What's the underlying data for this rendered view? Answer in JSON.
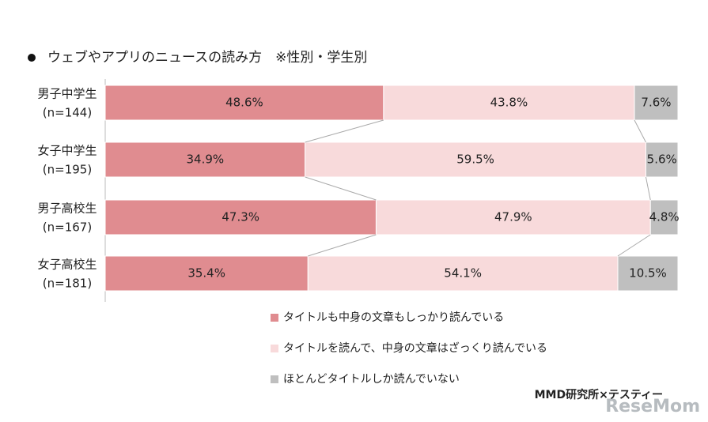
{
  "chart_data": {
    "type": "stacked-bar-100",
    "title": "ウェブやアプリのニュースの読み方　※性別・学生別",
    "categories": [
      "男子中学生",
      "女子中学生",
      "男子高校生",
      "女子高校生"
    ],
    "category_notes": [
      "(n=144)",
      "(n=195)",
      "(n=167)",
      "(n=181)"
    ],
    "series": [
      {
        "name": "タイトルも中身の文章もしっかり読んでいる",
        "color": "#e08c90",
        "values": [
          48.6,
          34.9,
          47.3,
          35.4
        ],
        "value_labels": [
          "48.6%",
          "34.9%",
          "47.3%",
          "35.4%"
        ]
      },
      {
        "name": "タイトルを読んで、中身の文章はざっくり読んでいる",
        "color": "#f8dadb",
        "values": [
          43.8,
          59.5,
          47.9,
          54.1
        ],
        "value_labels": [
          "43.8%",
          "59.5%",
          "47.9%",
          "54.1%"
        ]
      },
      {
        "name": "ほとんどタイトルしか読んでいない",
        "color": "#bfbfbf",
        "values": [
          7.6,
          5.6,
          4.8,
          10.5
        ],
        "value_labels": [
          "7.6%",
          "5.6%",
          "4.8%",
          "10.5%"
        ]
      }
    ],
    "source": "MMD研究所×テスティー",
    "watermark": "ReseMom"
  }
}
